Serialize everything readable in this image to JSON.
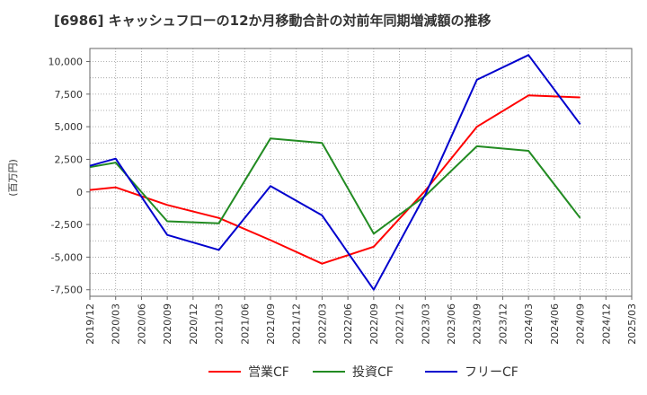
{
  "chart_data": {
    "type": "line",
    "title": "[6986]  キャッシュフローの12か月移動合計の対前年同期増減額の推移",
    "ylabel": "(百万円)",
    "xlabel": "",
    "ylim": [
      -8000,
      11000
    ],
    "yticks": [
      10000,
      7500,
      5000,
      2500,
      0,
      -2500,
      -5000,
      -7500
    ],
    "ytick_labels": [
      "10,000",
      "7,500",
      "5,000",
      "2,500",
      "0",
      "-2,500",
      "-5,000",
      "-7,500"
    ],
    "x_labels": [
      "2019/12",
      "2020/03",
      "2020/06",
      "2020/09",
      "2020/12",
      "2021/03",
      "2021/06",
      "2021/09",
      "2021/12",
      "2022/03",
      "2022/06",
      "2022/09",
      "2022/12",
      "2023/03",
      "2023/06",
      "2023/09",
      "2023/12",
      "2024/03",
      "2024/06",
      "2024/09",
      "2024/12",
      "2025/03"
    ],
    "grid": true,
    "legend_position": "bottom",
    "series": [
      {
        "name": "営業CF",
        "color": "#ff0000",
        "points": [
          [
            0,
            150
          ],
          [
            1,
            350
          ],
          [
            3,
            -1000
          ],
          [
            5,
            -2000
          ],
          [
            7,
            -3700
          ],
          [
            9,
            -5500
          ],
          [
            11,
            -4200
          ],
          [
            13,
            100
          ],
          [
            15,
            5000
          ],
          [
            17,
            7400
          ],
          [
            19,
            7250
          ]
        ]
      },
      {
        "name": "投資CF",
        "color": "#228b22",
        "points": [
          [
            0,
            1900
          ],
          [
            1,
            2250
          ],
          [
            3,
            -2250
          ],
          [
            5,
            -2400
          ],
          [
            7,
            4100
          ],
          [
            9,
            3750
          ],
          [
            11,
            -3200
          ],
          [
            13,
            -300
          ],
          [
            15,
            3500
          ],
          [
            17,
            3150
          ],
          [
            19,
            -2000
          ]
        ]
      },
      {
        "name": "フリーCF",
        "color": "#0000cd",
        "points": [
          [
            0,
            2000
          ],
          [
            1,
            2550
          ],
          [
            3,
            -3300
          ],
          [
            5,
            -4450
          ],
          [
            7,
            450
          ],
          [
            9,
            -1800
          ],
          [
            11,
            -7500
          ],
          [
            13,
            -200
          ],
          [
            15,
            8600
          ],
          [
            17,
            10500
          ],
          [
            19,
            5200
          ]
        ]
      }
    ]
  }
}
